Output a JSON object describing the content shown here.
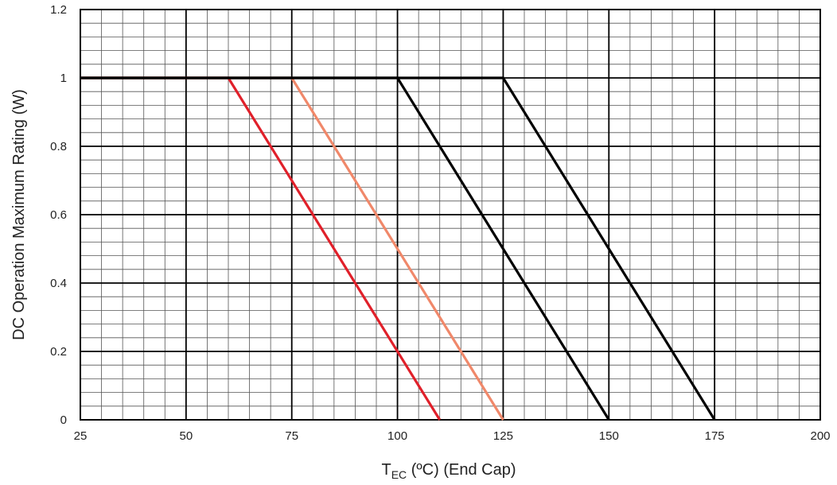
{
  "chart_data": {
    "type": "line",
    "title": "",
    "xlabel_main": "T",
    "xlabel_sub": "EC",
    "xlabel_rest": " (ºC) (End Cap)",
    "ylabel": "DC Operation Maximum Rating (W)",
    "xlim": [
      25,
      200
    ],
    "ylim": [
      0,
      1.2
    ],
    "x_major_ticks": [
      25,
      50,
      75,
      100,
      125,
      150,
      175,
      200
    ],
    "y_major_ticks": [
      0,
      0.2,
      0.4,
      0.6,
      0.8,
      1,
      1.2
    ],
    "x_tick_labels": [
      "25",
      "50",
      "75",
      "100",
      "125",
      "150",
      "175",
      "200"
    ],
    "y_tick_labels": [
      "0",
      "0.2",
      "0.4",
      "0.6",
      "0.8",
      "1",
      "1.2"
    ],
    "x_minor_step": 5,
    "y_minor_step": 0.04,
    "grid": true,
    "legend": "none",
    "series": [
      {
        "color": "#e0202a",
        "points": [
          [
            25,
            1
          ],
          [
            60,
            1
          ],
          [
            110,
            0
          ]
        ]
      },
      {
        "color": "#f0886a",
        "points": [
          [
            25,
            1
          ],
          [
            75,
            1
          ],
          [
            125,
            0
          ]
        ]
      },
      {
        "color": "#000000",
        "points": [
          [
            25,
            1
          ],
          [
            100,
            1
          ],
          [
            150,
            0
          ]
        ]
      },
      {
        "color": "#000000",
        "points": [
          [
            25,
            1
          ],
          [
            125,
            1
          ],
          [
            175,
            0
          ]
        ]
      }
    ]
  }
}
